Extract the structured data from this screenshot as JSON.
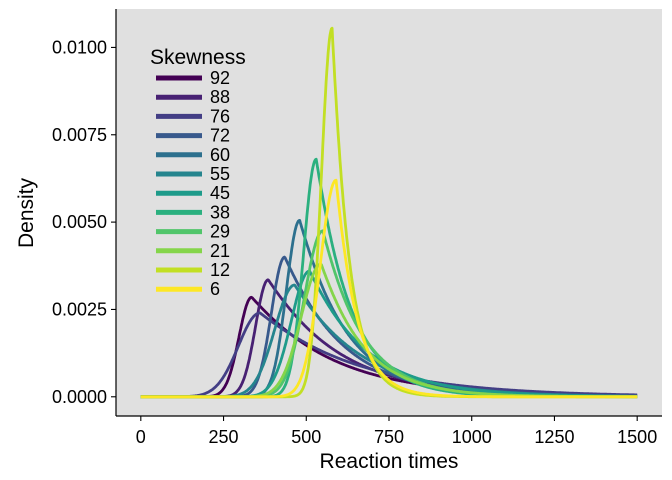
{
  "chart_data": {
    "type": "line",
    "xlabel": "Reaction times",
    "ylabel": "Density",
    "xlim": [
      -75,
      1575
    ],
    "ylim": [
      -0.00055,
      0.0111
    ],
    "x_ticks": [
      0,
      250,
      500,
      750,
      1000,
      1250,
      1500
    ],
    "x_tick_labels": [
      "0",
      "250",
      "500",
      "750",
      "1000",
      "1250",
      "1500"
    ],
    "y_ticks": [
      0,
      0.0025,
      0.005,
      0.0075,
      0.01
    ],
    "y_tick_labels": [
      "0.0000",
      "0.0025",
      "0.0050",
      "0.0075",
      "0.0100"
    ],
    "grid": false,
    "legend": {
      "title": "Skewness",
      "placement": "top-left"
    },
    "series": [
      {
        "name": "92",
        "color": "#440154",
        "peak_x": 335,
        "peak_y": 0.00285,
        "left_sd": 38,
        "right_decay": 245,
        "tail_start": 1500,
        "tail_end": 5e-05
      },
      {
        "name": "88",
        "color": "#482173",
        "peak_x": 385,
        "peak_y": 0.00335,
        "left_sd": 38,
        "right_decay": 215,
        "tail_start": 1500,
        "tail_end": 5e-05
      },
      {
        "name": "76",
        "color": "#433E85",
        "peak_x": 360,
        "peak_y": 0.0024,
        "left_sd": 65,
        "right_decay": 300,
        "tail_start": 1500,
        "tail_end": 6e-05
      },
      {
        "name": "72",
        "color": "#38598C",
        "peak_x": 435,
        "peak_y": 0.004,
        "left_sd": 40,
        "right_decay": 175,
        "tail_start": 1500,
        "tail_end": 4e-05
      },
      {
        "name": "60",
        "color": "#2D708E",
        "peak_x": 480,
        "peak_y": 0.00505,
        "left_sd": 40,
        "right_decay": 140,
        "tail_start": 1500,
        "tail_end": 3e-05
      },
      {
        "name": "55",
        "color": "#25858E",
        "peak_x": 465,
        "peak_y": 0.0032,
        "left_sd": 60,
        "right_decay": 200,
        "tail_start": 1500,
        "tail_end": 4e-05
      },
      {
        "name": "45",
        "color": "#1E9B8A",
        "peak_x": 510,
        "peak_y": 0.0036,
        "left_sd": 55,
        "right_decay": 170,
        "tail_start": 1500,
        "tail_end": 3e-05
      },
      {
        "name": "38",
        "color": "#2BB07F",
        "peak_x": 530,
        "peak_y": 0.0068,
        "left_sd": 38,
        "right_decay": 105,
        "tail_start": 1500,
        "tail_end": 2e-05
      },
      {
        "name": "29",
        "color": "#51C56A",
        "peak_x": 550,
        "peak_y": 0.00475,
        "left_sd": 55,
        "right_decay": 120,
        "tail_start": 1500,
        "tail_end": 2e-05
      },
      {
        "name": "21",
        "color": "#85D54A",
        "peak_x": 545,
        "peak_y": 0.0038,
        "left_sd": 60,
        "right_decay": 130,
        "tail_start": 1500,
        "tail_end": 2e-05
      },
      {
        "name": "12",
        "color": "#C2DF23",
        "peak_x": 578,
        "peak_y": 0.01055,
        "left_sd": 32,
        "right_decay": 52,
        "tail_start": 1500,
        "tail_end": 1e-05
      },
      {
        "name": "6",
        "color": "#FDE725",
        "peak_x": 590,
        "peak_y": 0.0062,
        "left_sd": 48,
        "right_decay": 62,
        "tail_start": 1500,
        "tail_end": 1e-05
      }
    ]
  }
}
